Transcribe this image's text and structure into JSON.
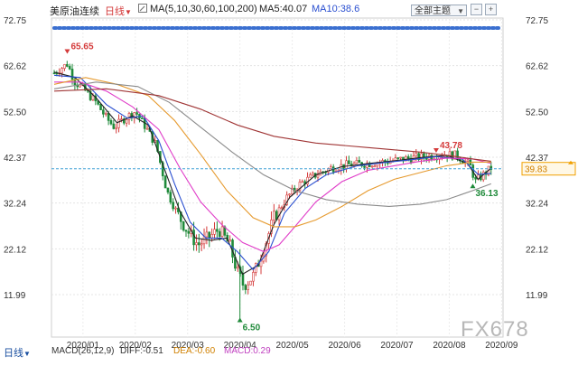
{
  "header": {
    "instrument": "美原油连续",
    "period": "日线",
    "ma_label": "MA(5,10,30,60,100,200)",
    "ma5": "MA5:40.07",
    "ma10": "MA10:38.6",
    "theme": "全部主题"
  },
  "bottom_tab": "日线",
  "macd": {
    "label": "MACD(26,12,9)",
    "diff": "DIFF:-0.51",
    "dea": "DEA:-0.60",
    "macd": "MACD:0.29"
  },
  "current_price": "39.83",
  "watermark": "FX678",
  "colors": {
    "up": "#d43a3a",
    "down": "#1f8a3a",
    "ma5": "#222222",
    "ma10": "#2a4fd0",
    "ma30": "#e03cc8",
    "ma60": "#e69a2e",
    "ma100": "#8a8a8a",
    "ma200": "#a03535",
    "price_line": "#3fa0d6",
    "price_tag": "#f0a000"
  },
  "chart_data": {
    "type": "candlestick",
    "ytick_labels": [
      "72.75",
      "62.62",
      "52.50",
      "42.37",
      "32.24",
      "22.12",
      "11.99"
    ],
    "yticks": [
      72.75,
      62.62,
      52.5,
      42.37,
      32.24,
      22.12,
      11.99
    ],
    "ylim": [
      6.0,
      72.75
    ],
    "xtick_labels": [
      "2020/01",
      "2020/02",
      "2020/03",
      "2020/04",
      "2020/05",
      "2020/06",
      "2020/07",
      "2020/08",
      "2020/09"
    ],
    "xtick_month_index": [
      0,
      1,
      2,
      3,
      4,
      5,
      6,
      7,
      8
    ],
    "months_span": [
      -0.1,
      8.35
    ],
    "annotations": [
      {
        "label": "65.65",
        "value": 65.65,
        "month": 0.25
      },
      {
        "label": "6.50",
        "value": 6.5,
        "month": 3.55
      },
      {
        "label": "43.78",
        "value": 43.78,
        "month": 7.3
      },
      {
        "label": "36.13",
        "value": 36.13,
        "month": 8.0
      }
    ],
    "anchors": [
      [
        0.0,
        61.0
      ],
      [
        0.25,
        63.0
      ],
      [
        0.4,
        59.0
      ],
      [
        0.6,
        57.0
      ],
      [
        0.8,
        54.5
      ],
      [
        1.0,
        51.0
      ],
      [
        1.15,
        49.0
      ],
      [
        1.35,
        51.0
      ],
      [
        1.55,
        52.5
      ],
      [
        1.75,
        49.0
      ],
      [
        1.95,
        45.0
      ],
      [
        2.15,
        35.0
      ],
      [
        2.35,
        30.0
      ],
      [
        2.55,
        26.0
      ],
      [
        2.75,
        23.0
      ],
      [
        2.95,
        24.5
      ],
      [
        3.15,
        26.5
      ],
      [
        3.35,
        23.0
      ],
      [
        3.5,
        17.0
      ],
      [
        3.62,
        14.0
      ],
      [
        3.8,
        16.0
      ],
      [
        4.0,
        22.0
      ],
      [
        4.2,
        29.0
      ],
      [
        4.45,
        33.5
      ],
      [
        4.7,
        36.5
      ],
      [
        5.0,
        38.5
      ],
      [
        5.3,
        40.0
      ],
      [
        5.6,
        40.7
      ],
      [
        6.0,
        41.0
      ],
      [
        6.4,
        41.5
      ],
      [
        6.8,
        42.2
      ],
      [
        7.1,
        42.5
      ],
      [
        7.4,
        43.0
      ],
      [
        7.7,
        42.8
      ],
      [
        7.95,
        40.5
      ],
      [
        8.05,
        37.0
      ],
      [
        8.2,
        38.5
      ],
      [
        8.35,
        40.0
      ]
    ],
    "moving_averages": [
      {
        "name": "MA5",
        "points": [
          [
            0.0,
            61.2
          ],
          [
            0.4,
            60.0
          ],
          [
            0.8,
            55.5
          ],
          [
            1.2,
            50.0
          ],
          [
            1.5,
            51.5
          ],
          [
            1.8,
            49.5
          ],
          [
            2.1,
            40.0
          ],
          [
            2.4,
            30.5
          ],
          [
            2.7,
            24.5
          ],
          [
            3.0,
            24.0
          ],
          [
            3.3,
            24.5
          ],
          [
            3.6,
            16.5
          ],
          [
            3.9,
            18.5
          ],
          [
            4.2,
            27.5
          ],
          [
            4.5,
            33.5
          ],
          [
            5.0,
            38.5
          ],
          [
            5.5,
            40.3
          ],
          [
            6.0,
            41.0
          ],
          [
            6.5,
            41.6
          ],
          [
            7.0,
            42.3
          ],
          [
            7.5,
            42.8
          ],
          [
            7.9,
            41.0
          ],
          [
            8.1,
            37.5
          ],
          [
            8.35,
            40.0
          ]
        ]
      },
      {
        "name": "MA10",
        "points": [
          [
            0.0,
            60.5
          ],
          [
            0.5,
            60.0
          ],
          [
            1.0,
            54.0
          ],
          [
            1.4,
            51.0
          ],
          [
            1.7,
            51.5
          ],
          [
            2.0,
            46.0
          ],
          [
            2.3,
            36.5
          ],
          [
            2.6,
            28.0
          ],
          [
            2.9,
            24.5
          ],
          [
            3.2,
            24.5
          ],
          [
            3.5,
            21.5
          ],
          [
            3.8,
            17.5
          ],
          [
            4.1,
            21.5
          ],
          [
            4.4,
            30.0
          ],
          [
            4.8,
            35.5
          ],
          [
            5.2,
            38.5
          ],
          [
            5.8,
            40.5
          ],
          [
            6.3,
            41.2
          ],
          [
            6.8,
            41.8
          ],
          [
            7.3,
            42.5
          ],
          [
            7.8,
            42.0
          ],
          [
            8.1,
            38.6
          ],
          [
            8.35,
            38.8
          ]
        ]
      },
      {
        "name": "MA30",
        "points": [
          [
            0.0,
            59.0
          ],
          [
            0.5,
            59.0
          ],
          [
            1.0,
            57.0
          ],
          [
            1.5,
            53.5
          ],
          [
            2.0,
            48.5
          ],
          [
            2.4,
            40.0
          ],
          [
            2.8,
            32.5
          ],
          [
            3.2,
            27.5
          ],
          [
            3.6,
            23.5
          ],
          [
            4.0,
            21.5
          ],
          [
            4.3,
            23.0
          ],
          [
            4.6,
            27.0
          ],
          [
            5.0,
            32.5
          ],
          [
            5.5,
            37.0
          ],
          [
            6.0,
            39.5
          ],
          [
            6.5,
            40.5
          ],
          [
            7.0,
            41.5
          ],
          [
            7.5,
            42.2
          ],
          [
            8.0,
            42.0
          ],
          [
            8.35,
            41.0
          ]
        ]
      },
      {
        "name": "MA60",
        "points": [
          [
            0.0,
            58.5
          ],
          [
            0.6,
            60.0
          ],
          [
            1.2,
            58.5
          ],
          [
            1.8,
            56.0
          ],
          [
            2.3,
            50.5
          ],
          [
            2.8,
            43.0
          ],
          [
            3.3,
            35.0
          ],
          [
            3.8,
            29.0
          ],
          [
            4.2,
            27.0
          ],
          [
            4.6,
            27.0
          ],
          [
            5.0,
            28.5
          ],
          [
            5.5,
            31.5
          ],
          [
            6.0,
            35.0
          ],
          [
            6.5,
            37.5
          ],
          [
            7.0,
            39.0
          ],
          [
            7.5,
            40.5
          ],
          [
            8.0,
            41.3
          ],
          [
            8.35,
            41.3
          ]
        ]
      },
      {
        "name": "MA100",
        "points": [
          [
            0.0,
            57.5
          ],
          [
            0.8,
            59.0
          ],
          [
            1.6,
            58.0
          ],
          [
            2.2,
            54.5
          ],
          [
            2.8,
            49.0
          ],
          [
            3.4,
            43.5
          ],
          [
            4.0,
            38.5
          ],
          [
            4.6,
            35.0
          ],
          [
            5.2,
            33.0
          ],
          [
            5.8,
            32.0
          ],
          [
            6.4,
            31.5
          ],
          [
            7.0,
            32.0
          ],
          [
            7.5,
            33.0
          ],
          [
            8.0,
            35.0
          ],
          [
            8.35,
            36.5
          ]
        ]
      },
      {
        "name": "MA200",
        "points": [
          [
            0.0,
            57.0
          ],
          [
            1.0,
            57.5
          ],
          [
            2.0,
            56.0
          ],
          [
            2.8,
            53.0
          ],
          [
            3.5,
            49.5
          ],
          [
            4.2,
            47.0
          ],
          [
            5.0,
            45.5
          ],
          [
            6.0,
            44.5
          ],
          [
            7.0,
            43.5
          ],
          [
            7.5,
            42.8
          ],
          [
            8.0,
            42.0
          ],
          [
            8.35,
            41.5
          ]
        ]
      }
    ]
  }
}
